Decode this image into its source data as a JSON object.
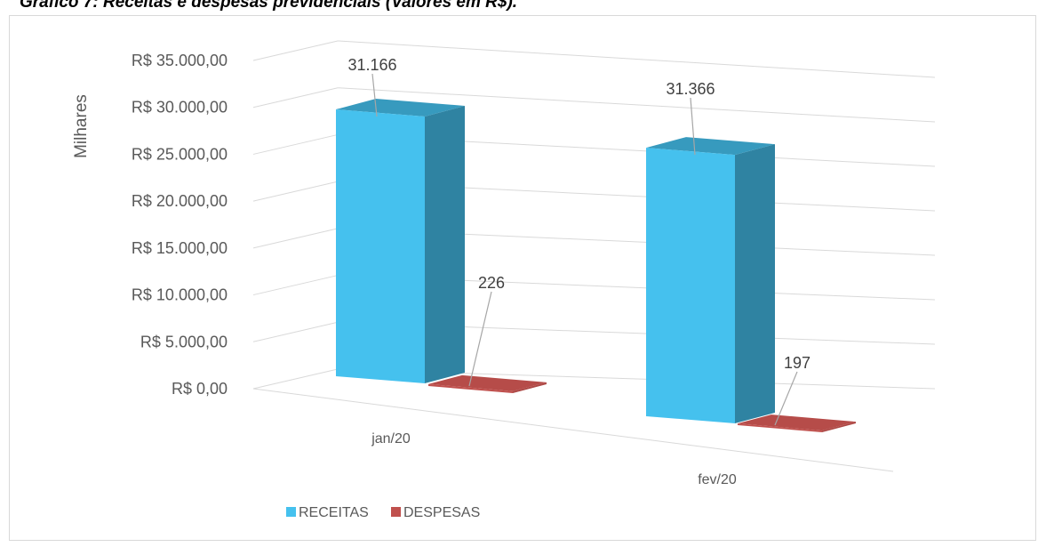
{
  "caption": "Gráfico 7: Receitas e despesas previdenciais (Valores em R$).",
  "chart_data": {
    "type": "bar",
    "style": "3d-clustered-column",
    "categories": [
      "jan/20",
      "fev/20"
    ],
    "series": [
      {
        "name": "RECEITAS",
        "values": [
          31166,
          31366
        ],
        "labels": [
          "31.166",
          "31.366"
        ],
        "color": "#45c1ee"
      },
      {
        "name": "DESPESAS",
        "values": [
          226,
          197
        ],
        "labels": [
          "226",
          "197"
        ],
        "color": "#c0504d"
      }
    ],
    "ylabel": "Milhares",
    "ylim": [
      0,
      35000
    ],
    "yticks": [
      0,
      5000,
      10000,
      15000,
      20000,
      25000,
      30000,
      35000
    ],
    "ytick_labels": [
      "R$ 0,00",
      "R$ 5.000,00",
      "R$ 10.000,00",
      "R$ 15.000,00",
      "R$ 20.000,00",
      "R$ 25.000,00",
      "R$ 30.000,00",
      "R$ 35.000,00"
    ],
    "grid": true,
    "legend_position": "bottom-left"
  }
}
